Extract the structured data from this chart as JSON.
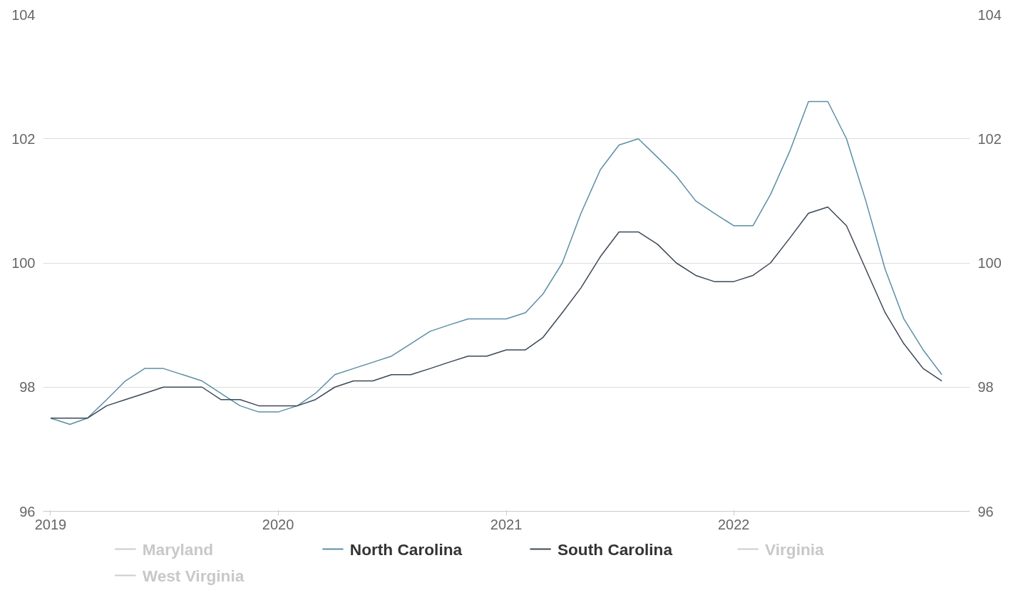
{
  "chart_data": {
    "type": "line",
    "x": [
      "2019-01",
      "2019-02",
      "2019-03",
      "2019-04",
      "2019-05",
      "2019-06",
      "2019-07",
      "2019-08",
      "2019-09",
      "2019-10",
      "2019-11",
      "2019-12",
      "2020-01",
      "2020-02",
      "2020-03",
      "2020-04",
      "2020-05",
      "2020-06",
      "2020-07",
      "2020-08",
      "2020-09",
      "2020-10",
      "2020-11",
      "2020-12",
      "2021-01",
      "2021-02",
      "2021-03",
      "2021-04",
      "2021-05",
      "2021-06",
      "2021-07",
      "2021-08",
      "2021-09",
      "2021-10",
      "2021-11",
      "2021-12",
      "2022-01",
      "2022-02",
      "2022-03",
      "2022-04",
      "2022-05",
      "2022-06",
      "2022-07",
      "2022-08",
      "2022-09",
      "2022-10",
      "2022-11",
      "2022-12"
    ],
    "series": [
      {
        "name": "Maryland",
        "color": "#cccccc",
        "values": [
          null,
          null,
          null,
          null,
          null,
          null,
          null,
          null,
          null,
          null,
          null,
          null,
          null,
          null,
          null,
          null,
          null,
          null,
          null,
          null,
          null,
          null,
          null,
          null,
          null,
          null,
          null,
          null,
          null,
          null,
          null,
          null,
          null,
          null,
          null,
          null,
          null,
          null,
          null,
          null,
          null,
          null,
          null,
          null,
          null,
          null,
          null,
          null
        ]
      },
      {
        "name": "North Carolina",
        "color": "#5b8ea6",
        "values": [
          97.5,
          97.4,
          97.5,
          97.8,
          98.1,
          98.3,
          98.3,
          98.2,
          98.1,
          97.9,
          97.7,
          97.6,
          97.6,
          97.7,
          97.9,
          98.2,
          98.3,
          98.4,
          98.5,
          98.7,
          98.9,
          99.0,
          99.1,
          99.1,
          99.1,
          99.2,
          99.5,
          100.0,
          100.8,
          101.5,
          101.9,
          102.0,
          101.7,
          101.4,
          101.0,
          100.8,
          100.6,
          100.6,
          101.1,
          101.8,
          102.6,
          102.6,
          102.0,
          101.0,
          99.9,
          99.1,
          98.6,
          98.2
        ]
      },
      {
        "name": "South Carolina",
        "color": "#3c4856",
        "values": [
          97.5,
          97.5,
          97.5,
          97.7,
          97.8,
          97.9,
          98.0,
          98.0,
          98.0,
          97.8,
          97.8,
          97.7,
          97.7,
          97.7,
          97.8,
          98.0,
          98.1,
          98.1,
          98.2,
          98.2,
          98.3,
          98.4,
          98.5,
          98.5,
          98.6,
          98.6,
          98.8,
          99.2,
          99.6,
          100.1,
          100.5,
          100.5,
          100.3,
          100.0,
          99.8,
          99.7,
          99.7,
          99.8,
          100.0,
          100.4,
          100.8,
          100.9,
          100.6,
          99.9,
          99.2,
          98.7,
          98.3,
          98.1
        ]
      },
      {
        "name": "Virginia",
        "color": "#cccccc",
        "values": [
          null,
          null,
          null,
          null,
          null,
          null,
          null,
          null,
          null,
          null,
          null,
          null,
          null,
          null,
          null,
          null,
          null,
          null,
          null,
          null,
          null,
          null,
          null,
          null,
          null,
          null,
          null,
          null,
          null,
          null,
          null,
          null,
          null,
          null,
          null,
          null,
          null,
          null,
          null,
          null,
          null,
          null,
          null,
          null,
          null,
          null,
          null,
          null
        ]
      },
      {
        "name": "West Virginia",
        "color": "#cccccc",
        "values": [
          null,
          null,
          null,
          null,
          null,
          null,
          null,
          null,
          null,
          null,
          null,
          null,
          null,
          null,
          null,
          null,
          null,
          null,
          null,
          null,
          null,
          null,
          null,
          null,
          null,
          null,
          null,
          null,
          null,
          null,
          null,
          null,
          null,
          null,
          null,
          null,
          null,
          null,
          null,
          null,
          null,
          null,
          null,
          null,
          null,
          null,
          null,
          null
        ]
      }
    ],
    "xlim": [
      "2018-12-20",
      "2023-01-15"
    ],
    "xticks": [
      "2019",
      "2020",
      "2021",
      "2022"
    ],
    "ylim": [
      96,
      104
    ],
    "yticks": [
      96,
      98,
      100,
      102,
      104
    ],
    "y2lim": [
      96,
      104
    ],
    "y2ticks": [
      96,
      98,
      100,
      102,
      104
    ],
    "grid": "y",
    "legend": "bottom",
    "marker": "none",
    "line_style": "solid"
  }
}
